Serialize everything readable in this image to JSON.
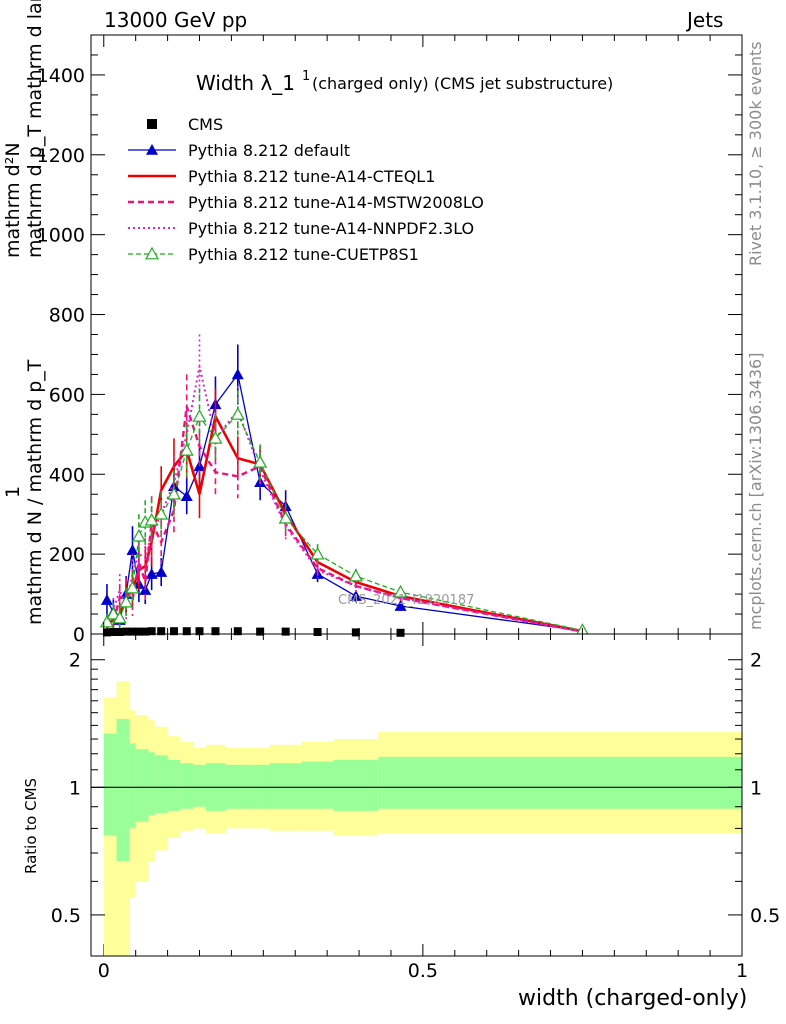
{
  "header": {
    "left": "13000 GeV pp",
    "right": "Jets"
  },
  "side_labels": {
    "rivet": "Rivet 3.1.10, ≥ 300k events",
    "mcplots": "mcplots.cern.ch [arXiv:1306.3436]"
  },
  "chart_data": {
    "type": "line",
    "title_main": "Width λ_1",
    "title_sup": "1",
    "title_rest": "(charged only) (CMS jet substructure)",
    "watermark": "CMS_2021_I1920187",
    "ylabel_main": {
      "numerator": "mathrm d²N",
      "denominator": "mathrm d p_T mathrm d lambda",
      "prefix_num": "1",
      "prefix_den": "mathrm d N / mathrm d p_T"
    },
    "ylabel_ratio": "Ratio to CMS",
    "xlabel": "width (charged-only)",
    "xlim": [
      -0.02,
      1.0
    ],
    "ylim": [
      0,
      1500
    ],
    "ratio_ylim": [
      0.4,
      2.3
    ],
    "xticks": [
      0,
      0.5,
      1
    ],
    "xticklabels": [
      "0",
      "0.5",
      "1"
    ],
    "yticks": [
      0,
      200,
      400,
      600,
      800,
      1000,
      1200,
      1400
    ],
    "yticklabels": [
      "0",
      "200",
      "400",
      "600",
      "800",
      "1000",
      "1200",
      "1400"
    ],
    "ratio_yticks": [
      0.5,
      1,
      2
    ],
    "ratio_yticklabels": [
      "0.5",
      "1",
      "2"
    ],
    "data": {
      "name": "CMS",
      "x": [
        0.005,
        0.015,
        0.025,
        0.035,
        0.045,
        0.055,
        0.065,
        0.075,
        0.09,
        0.11,
        0.13,
        0.15,
        0.175,
        0.21,
        0.245,
        0.285,
        0.335,
        0.395,
        0.465
      ],
      "y": [
        4,
        5,
        5,
        6,
        6,
        6,
        6,
        7,
        7,
        7,
        7,
        7,
        7,
        7,
        6,
        6,
        5,
        4,
        3
      ]
    },
    "bins": [
      0,
      0.01,
      0.02,
      0.03,
      0.04,
      0.05,
      0.06,
      0.07,
      0.08,
      0.1,
      0.12,
      0.14,
      0.16,
      0.19,
      0.23,
      0.26,
      0.31,
      0.36,
      0.43,
      1.0
    ],
    "band_outer": {
      "upper": [
        1.63,
        1.63,
        1.78,
        1.78,
        1.52,
        1.48,
        1.48,
        1.44,
        1.39,
        1.32,
        1.28,
        1.24,
        1.26,
        1.24,
        1.24,
        1.26,
        1.28,
        1.3,
        1.35
      ],
      "lower": [
        0.38,
        0.38,
        0.35,
        0.35,
        0.55,
        0.6,
        0.6,
        0.67,
        0.71,
        0.76,
        0.79,
        0.8,
        0.78,
        0.8,
        0.8,
        0.79,
        0.79,
        0.77,
        0.78
      ]
    },
    "band_inner": {
      "upper": [
        1.34,
        1.34,
        1.45,
        1.45,
        1.27,
        1.23,
        1.23,
        1.21,
        1.19,
        1.16,
        1.14,
        1.13,
        1.14,
        1.13,
        1.13,
        1.14,
        1.15,
        1.16,
        1.18
      ],
      "lower": [
        0.77,
        0.77,
        0.67,
        0.67,
        0.8,
        0.83,
        0.83,
        0.86,
        0.87,
        0.88,
        0.89,
        0.9,
        0.88,
        0.89,
        0.89,
        0.89,
        0.89,
        0.88,
        0.89
      ]
    },
    "series": [
      {
        "name": "Pythia 8.212 default",
        "color": "#0000cc",
        "dash": "",
        "width": 1.3,
        "marker": "triangle-filled",
        "x": [
          0.005,
          0.015,
          0.025,
          0.035,
          0.045,
          0.055,
          0.065,
          0.075,
          0.09,
          0.11,
          0.13,
          0.15,
          0.175,
          0.21,
          0.245,
          0.285,
          0.335,
          0.395,
          0.465,
          0.75
        ],
        "y": [
          85,
          55,
          35,
          100,
          210,
          125,
          110,
          150,
          155,
          370,
          345,
          420,
          575,
          650,
          380,
          320,
          150,
          95,
          70,
          8
        ],
        "err": [
          40,
          35,
          30,
          45,
          60,
          45,
          35,
          40,
          35,
          50,
          45,
          55,
          70,
          75,
          45,
          40,
          20,
          15,
          12,
          4
        ]
      },
      {
        "name": "Pythia 8.212 tune-A14-CTEQL1",
        "color": "#ee0000",
        "dash": "",
        "width": 2.6,
        "marker": "none",
        "x": [
          0.005,
          0.015,
          0.025,
          0.035,
          0.045,
          0.055,
          0.065,
          0.075,
          0.09,
          0.11,
          0.13,
          0.15,
          0.175,
          0.21,
          0.245,
          0.285,
          0.335,
          0.395,
          0.465,
          0.75
        ],
        "y": [
          25,
          35,
          50,
          90,
          110,
          160,
          170,
          230,
          360,
          420,
          460,
          350,
          545,
          440,
          425,
          300,
          180,
          130,
          95,
          7
        ],
        "err": [
          20,
          25,
          30,
          40,
          45,
          50,
          50,
          60,
          60,
          70,
          70,
          60,
          70,
          55,
          45,
          35,
          20,
          15,
          12,
          4
        ]
      },
      {
        "name": "Pythia 8.212 tune-A14-MSTW2008LO",
        "color": "#ee1177",
        "dash": "6,4",
        "width": 2.4,
        "marker": "none",
        "x": [
          0.005,
          0.015,
          0.025,
          0.035,
          0.045,
          0.055,
          0.065,
          0.075,
          0.09,
          0.11,
          0.13,
          0.15,
          0.175,
          0.21,
          0.245,
          0.285,
          0.335,
          0.395,
          0.465,
          0.75
        ],
        "y": [
          15,
          30,
          90,
          100,
          85,
          180,
          130,
          280,
          230,
          310,
          570,
          470,
          405,
          395,
          420,
          275,
          165,
          120,
          90,
          6
        ],
        "err": [
          15,
          25,
          35,
          40,
          40,
          55,
          45,
          65,
          55,
          60,
          80,
          65,
          60,
          55,
          45,
          35,
          20,
          15,
          12,
          4
        ]
      },
      {
        "name": "Pythia 8.212 tune-A14-NNPDF2.3LO",
        "color": "#dd22cc",
        "dash": "2,3",
        "width": 2.0,
        "marker": "none",
        "x": [
          0.005,
          0.015,
          0.025,
          0.035,
          0.045,
          0.055,
          0.065,
          0.075,
          0.09,
          0.11,
          0.13,
          0.15,
          0.175,
          0.21,
          0.245,
          0.285,
          0.335,
          0.395,
          0.465,
          0.75
        ],
        "y": [
          20,
          60,
          110,
          70,
          150,
          200,
          190,
          250,
          300,
          380,
          500,
          670,
          490,
          560,
          410,
          270,
          160,
          120,
          90,
          6
        ],
        "err": [
          15,
          30,
          40,
          35,
          50,
          55,
          50,
          60,
          60,
          65,
          75,
          80,
          65,
          60,
          45,
          35,
          20,
          15,
          12,
          4
        ]
      },
      {
        "name": "Pythia 8.212 tune-CUETP8S1",
        "color": "#22aa22",
        "dash": "5,3",
        "width": 1.3,
        "marker": "triangle-open",
        "x": [
          0.005,
          0.015,
          0.025,
          0.035,
          0.045,
          0.055,
          0.065,
          0.075,
          0.09,
          0.11,
          0.13,
          0.15,
          0.175,
          0.21,
          0.245,
          0.285,
          0.335,
          0.395,
          0.465,
          0.75
        ],
        "y": [
          30,
          50,
          40,
          80,
          115,
          245,
          280,
          285,
          300,
          350,
          460,
          545,
          490,
          550,
          430,
          290,
          200,
          145,
          105,
          9
        ],
        "err": [
          20,
          25,
          25,
          35,
          40,
          55,
          55,
          55,
          55,
          60,
          65,
          70,
          60,
          60,
          45,
          35,
          25,
          18,
          14,
          4
        ]
      }
    ]
  }
}
